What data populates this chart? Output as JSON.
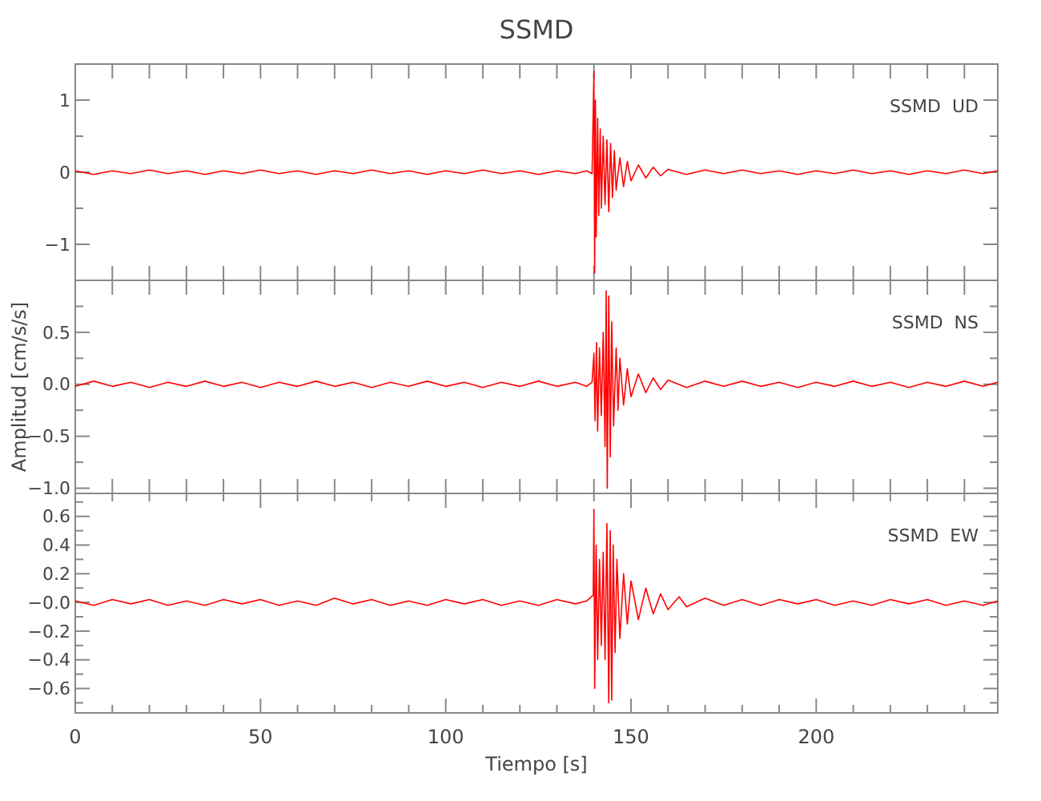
{
  "chart_data": [
    {
      "type": "line",
      "title": "SSMD",
      "annotations": [
        "SSMD  UD"
      ],
      "tick_labels": "y",
      "xlim": [
        0,
        249
      ],
      "ylim": [
        -1.5,
        1.5
      ],
      "xticks": [
        {
          "value": 0,
          "label": null
        },
        {
          "value": 10,
          "label": null
        },
        {
          "value": 20,
          "label": null
        },
        {
          "value": 30,
          "label": null
        },
        {
          "value": 40,
          "label": null
        },
        {
          "value": 50,
          "label": null
        },
        {
          "value": 60,
          "label": null
        },
        {
          "value": 70,
          "label": null
        },
        {
          "value": 80,
          "label": null
        },
        {
          "value": 90,
          "label": null
        },
        {
          "value": 100,
          "label": null
        },
        {
          "value": 110,
          "label": null
        },
        {
          "value": 120,
          "label": null
        },
        {
          "value": 130,
          "label": null
        },
        {
          "value": 140,
          "label": null
        },
        {
          "value": 150,
          "label": null
        },
        {
          "value": 160,
          "label": null
        },
        {
          "value": 170,
          "label": null
        },
        {
          "value": 180,
          "label": null
        },
        {
          "value": 190,
          "label": null
        },
        {
          "value": 200,
          "label": null
        },
        {
          "value": 210,
          "label": null
        },
        {
          "value": 220,
          "label": null
        },
        {
          "value": 230,
          "label": null
        },
        {
          "value": 240,
          "label": null
        }
      ],
      "yticks": [
        {
          "value": -1,
          "label": "−1"
        },
        {
          "value": -0.5,
          "label": null
        },
        {
          "value": 0,
          "label": "0"
        },
        {
          "value": 0.5,
          "label": null
        },
        {
          "value": 1,
          "label": "1"
        }
      ],
      "series": [
        {
          "color": "#ff0000",
          "x": [
            0,
            5,
            10,
            15,
            20,
            25,
            30,
            35,
            40,
            45,
            50,
            55,
            60,
            65,
            70,
            75,
            80,
            85,
            90,
            95,
            100,
            105,
            110,
            115,
            120,
            125,
            130,
            135,
            138,
            139.5,
            140,
            140.2,
            140.4,
            140.6,
            141,
            141.3,
            141.7,
            142,
            142.5,
            143,
            143.5,
            144,
            144.5,
            145,
            145.5,
            146,
            147,
            148,
            149,
            150,
            152,
            154,
            156,
            158,
            160,
            165,
            170,
            175,
            180,
            185,
            190,
            195,
            200,
            205,
            210,
            215,
            220,
            225,
            230,
            235,
            240,
            245,
            249
          ],
          "values": [
            0.02,
            -0.03,
            0.02,
            -0.02,
            0.03,
            -0.02,
            0.02,
            -0.03,
            0.02,
            -0.02,
            0.03,
            -0.02,
            0.02,
            -0.03,
            0.02,
            -0.02,
            0.03,
            -0.02,
            0.02,
            -0.03,
            0.02,
            -0.02,
            0.03,
            -0.02,
            0.02,
            -0.03,
            0.02,
            -0.02,
            0.02,
            -0.02,
            1.4,
            -1.4,
            1.0,
            -0.9,
            0.75,
            -0.6,
            0.6,
            -0.5,
            0.5,
            -0.45,
            0.45,
            -0.55,
            0.4,
            -0.35,
            0.3,
            -0.25,
            0.2,
            -0.2,
            0.15,
            -0.12,
            0.1,
            -0.08,
            0.07,
            -0.05,
            0.04,
            -0.03,
            0.03,
            -0.02,
            0.03,
            -0.02,
            0.02,
            -0.03,
            0.02,
            -0.02,
            0.03,
            -0.02,
            0.02,
            -0.03,
            0.02,
            -0.02,
            0.03,
            -0.02,
            0.02
          ]
        }
      ]
    },
    {
      "type": "line",
      "ylabel": "Amplitud [cm/s/s]",
      "annotations": [
        "SSMD  NS"
      ],
      "tick_labels": "y",
      "xlim": [
        0,
        249
      ],
      "ylim": [
        -1.05,
        1.0
      ],
      "xticks": [
        {
          "value": 0,
          "label": null
        },
        {
          "value": 10,
          "label": null
        },
        {
          "value": 20,
          "label": null
        },
        {
          "value": 30,
          "label": null
        },
        {
          "value": 40,
          "label": null
        },
        {
          "value": 50,
          "label": null
        },
        {
          "value": 60,
          "label": null
        },
        {
          "value": 70,
          "label": null
        },
        {
          "value": 80,
          "label": null
        },
        {
          "value": 90,
          "label": null
        },
        {
          "value": 100,
          "label": null
        },
        {
          "value": 110,
          "label": null
        },
        {
          "value": 120,
          "label": null
        },
        {
          "value": 130,
          "label": null
        },
        {
          "value": 140,
          "label": null
        },
        {
          "value": 150,
          "label": null
        },
        {
          "value": 160,
          "label": null
        },
        {
          "value": 170,
          "label": null
        },
        {
          "value": 180,
          "label": null
        },
        {
          "value": 190,
          "label": null
        },
        {
          "value": 200,
          "label": null
        },
        {
          "value": 210,
          "label": null
        },
        {
          "value": 220,
          "label": null
        },
        {
          "value": 230,
          "label": null
        },
        {
          "value": 240,
          "label": null
        }
      ],
      "yticks": [
        {
          "value": -1,
          "label": "−1.0"
        },
        {
          "value": -0.75,
          "label": null
        },
        {
          "value": -0.5,
          "label": "−0.5"
        },
        {
          "value": -0.25,
          "label": null
        },
        {
          "value": 0,
          "label": "0.0"
        },
        {
          "value": 0.25,
          "label": null
        },
        {
          "value": 0.5,
          "label": "0.5"
        },
        {
          "value": 0.75,
          "label": null
        }
      ],
      "series": [
        {
          "color": "#ff0000",
          "x": [
            0,
            5,
            10,
            15,
            20,
            25,
            30,
            35,
            40,
            45,
            50,
            55,
            60,
            65,
            70,
            75,
            80,
            85,
            90,
            95,
            100,
            105,
            110,
            115,
            120,
            125,
            130,
            135,
            138,
            139.5,
            140,
            140.3,
            140.7,
            141,
            141.5,
            142,
            142.5,
            143,
            143.3,
            143.6,
            144,
            144.4,
            144.8,
            145.3,
            146,
            146.5,
            147,
            148,
            149,
            150,
            152,
            154,
            156,
            158,
            160,
            165,
            170,
            175,
            180,
            185,
            190,
            195,
            200,
            205,
            210,
            215,
            220,
            225,
            230,
            235,
            240,
            245,
            249
          ],
          "values": [
            -0.02,
            0.03,
            -0.02,
            0.02,
            -0.03,
            0.02,
            -0.02,
            0.03,
            -0.02,
            0.02,
            -0.03,
            0.02,
            -0.02,
            0.03,
            -0.02,
            0.02,
            -0.03,
            0.02,
            -0.02,
            0.03,
            -0.02,
            0.02,
            -0.03,
            0.02,
            -0.02,
            0.03,
            -0.02,
            0.02,
            -0.02,
            0.02,
            0.3,
            -0.35,
            0.4,
            -0.45,
            0.35,
            -0.3,
            0.5,
            -0.6,
            0.9,
            -1.0,
            0.85,
            -0.7,
            0.6,
            -0.4,
            0.35,
            -0.25,
            0.25,
            -0.2,
            0.15,
            -0.12,
            0.1,
            -0.08,
            0.06,
            -0.05,
            0.04,
            -0.03,
            0.03,
            -0.02,
            0.03,
            -0.02,
            0.02,
            -0.03,
            0.02,
            -0.02,
            0.03,
            -0.02,
            0.02,
            -0.03,
            0.02,
            -0.02,
            0.03,
            -0.02,
            0.02
          ]
        }
      ]
    },
    {
      "type": "line",
      "xlabel": "Tiempo [s]",
      "annotations": [
        "SSMD  EW"
      ],
      "xlim": [
        0,
        249
      ],
      "ylim": [
        -0.77,
        0.76
      ],
      "xticks": [
        0,
        {
          "value": 10,
          "label": null
        },
        {
          "value": 20,
          "label": null
        },
        {
          "value": 30,
          "label": null
        },
        {
          "value": 40,
          "label": null
        },
        50,
        {
          "value": 60,
          "label": null
        },
        {
          "value": 70,
          "label": null
        },
        {
          "value": 80,
          "label": null
        },
        {
          "value": 90,
          "label": null
        },
        100,
        {
          "value": 110,
          "label": null
        },
        {
          "value": 120,
          "label": null
        },
        {
          "value": 130,
          "label": null
        },
        {
          "value": 140,
          "label": null
        },
        150,
        {
          "value": 160,
          "label": null
        },
        {
          "value": 170,
          "label": null
        },
        {
          "value": 180,
          "label": null
        },
        {
          "value": 190,
          "label": null
        },
        200,
        {
          "value": 210,
          "label": null
        },
        {
          "value": 220,
          "label": null
        },
        {
          "value": 230,
          "label": null
        },
        {
          "value": 240,
          "label": null
        }
      ],
      "yticks": [
        {
          "value": -0.7,
          "label": null
        },
        {
          "value": -0.6,
          "label": "−0.6"
        },
        {
          "value": -0.5,
          "label": null
        },
        {
          "value": -0.4,
          "label": "−0.4"
        },
        {
          "value": -0.3,
          "label": null
        },
        {
          "value": -0.2,
          "label": "−0.2"
        },
        {
          "value": -0.1,
          "label": null
        },
        {
          "value": 0,
          "label": "−0.0"
        },
        {
          "value": 0.1,
          "label": null
        },
        {
          "value": 0.2,
          "label": "0.2"
        },
        {
          "value": 0.3,
          "label": null
        },
        {
          "value": 0.4,
          "label": "0.4"
        },
        {
          "value": 0.5,
          "label": null
        },
        {
          "value": 0.6,
          "label": "0.6"
        },
        {
          "value": 0.7,
          "label": null
        }
      ],
      "series": [
        {
          "color": "#ff0000",
          "x": [
            0,
            5,
            10,
            15,
            20,
            25,
            30,
            35,
            40,
            45,
            50,
            55,
            60,
            65,
            70,
            75,
            80,
            85,
            90,
            95,
            100,
            105,
            110,
            115,
            120,
            125,
            130,
            135,
            138,
            139.8,
            140,
            140.2,
            140.6,
            141,
            141.5,
            142,
            142.5,
            143,
            143.5,
            144,
            144.4,
            144.8,
            145.2,
            145.7,
            146.2,
            147,
            148,
            149,
            150,
            152,
            154,
            156,
            158,
            160,
            163,
            165,
            170,
            175,
            180,
            185,
            190,
            195,
            200,
            205,
            210,
            215,
            220,
            225,
            230,
            235,
            240,
            245,
            249
          ],
          "values": [
            0.01,
            -0.02,
            0.02,
            -0.01,
            0.02,
            -0.02,
            0.01,
            -0.02,
            0.02,
            -0.01,
            0.02,
            -0.02,
            0.01,
            -0.02,
            0.03,
            -0.01,
            0.02,
            -0.02,
            0.01,
            -0.02,
            0.02,
            -0.01,
            0.02,
            -0.02,
            0.01,
            -0.02,
            0.02,
            -0.01,
            0.01,
            0.05,
            0.65,
            -0.6,
            0.4,
            -0.4,
            0.3,
            -0.3,
            0.35,
            -0.4,
            0.55,
            -0.7,
            0.5,
            -0.68,
            0.4,
            -0.35,
            0.3,
            -0.25,
            0.2,
            -0.15,
            0.15,
            -0.12,
            0.1,
            -0.08,
            0.06,
            -0.05,
            0.04,
            -0.03,
            0.03,
            -0.02,
            0.02,
            -0.02,
            0.02,
            -0.01,
            0.02,
            -0.02,
            0.01,
            -0.02,
            0.02,
            -0.01,
            0.02,
            -0.02,
            0.01,
            -0.02,
            0.01
          ]
        }
      ]
    }
  ]
}
